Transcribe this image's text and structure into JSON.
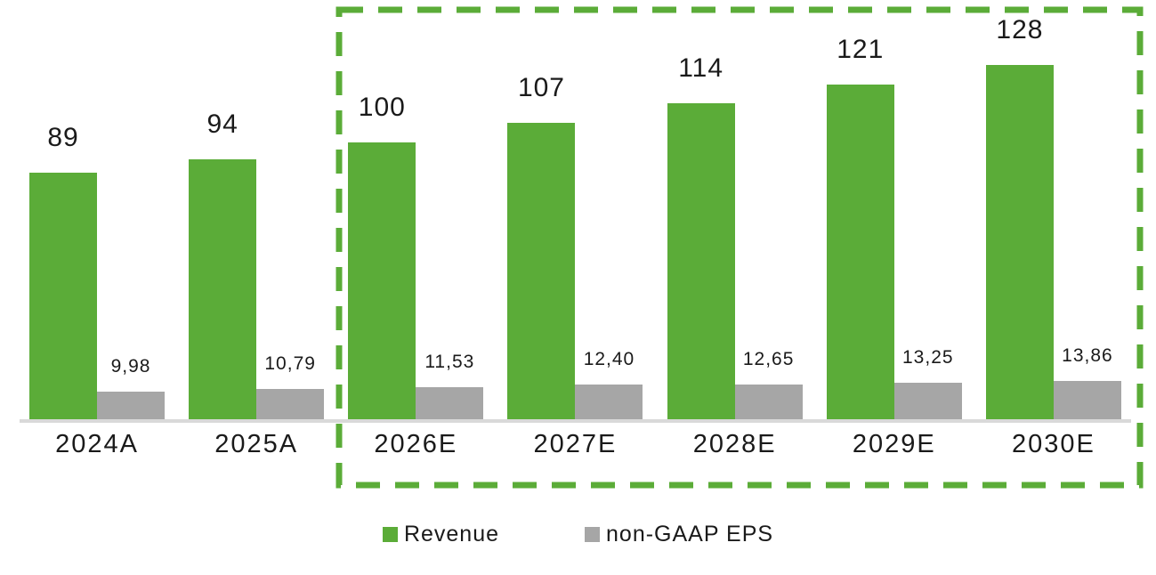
{
  "chart_data": {
    "type": "bar",
    "title": "",
    "categories": [
      "2024A",
      "2025A",
      "2026E",
      "2027E",
      "2028E",
      "2029E",
      "2030E"
    ],
    "series": [
      {
        "name": "Revenue",
        "color": "#5bac38",
        "values": [
          89,
          94,
          100,
          107,
          114,
          121,
          128
        ],
        "labels": [
          "89",
          "94",
          "100",
          "107",
          "114",
          "121",
          "128"
        ]
      },
      {
        "name": "non-GAAP EPS",
        "color": "#a6a6a6",
        "values": [
          9.98,
          10.79,
          11.53,
          12.4,
          12.65,
          13.25,
          13.86
        ],
        "labels": [
          "9,98",
          "10,79",
          "11,53",
          "12,40",
          "12,65",
          "13,25",
          "13,86"
        ]
      }
    ],
    "ylim": [
      0,
      140
    ],
    "grid": false,
    "axis_line_color": "#d9d9d9",
    "legend_position": "bottom",
    "highlight_box": {
      "style": "dashed-rectangle",
      "color": "#5bac38",
      "covers_categories": [
        "2026E",
        "2027E",
        "2028E",
        "2029E",
        "2030E"
      ]
    }
  },
  "legend": {
    "items": [
      {
        "label": "Revenue",
        "color": "#5bac38"
      },
      {
        "label": "non-GAAP EPS",
        "color": "#a6a6a6"
      }
    ]
  }
}
